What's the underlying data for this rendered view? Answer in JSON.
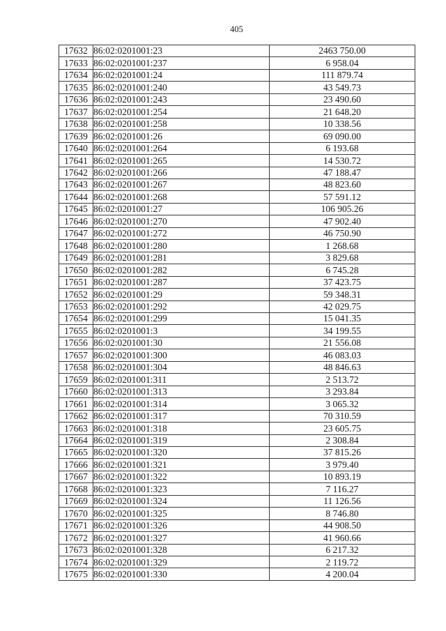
{
  "page": {
    "number": "405"
  },
  "table": {
    "columns": [
      "row-id",
      "cadastral-code",
      "value"
    ],
    "rows": [
      {
        "id": "17632",
        "code": "86:02:0201001:23",
        "value": "2463 750.00"
      },
      {
        "id": "17633",
        "code": "86:02:0201001:237",
        "value": "6 958.04"
      },
      {
        "id": "17634",
        "code": "86:02:0201001:24",
        "value": "111 879.74"
      },
      {
        "id": "17635",
        "code": "86:02:0201001:240",
        "value": "43 549.73"
      },
      {
        "id": "17636",
        "code": "86:02:0201001:243",
        "value": "23 490.60"
      },
      {
        "id": "17637",
        "code": "86:02:0201001:254",
        "value": "21 648.20"
      },
      {
        "id": "17638",
        "code": "86:02:0201001:258",
        "value": "10 338.56"
      },
      {
        "id": "17639",
        "code": "86:02:0201001:26",
        "value": "69 090.00"
      },
      {
        "id": "17640",
        "code": "86:02:0201001:264",
        "value": "6 193.68"
      },
      {
        "id": "17641",
        "code": "86:02:0201001:265",
        "value": "14 530.72"
      },
      {
        "id": "17642",
        "code": "86:02:0201001:266",
        "value": "47 188.47"
      },
      {
        "id": "17643",
        "code": "86:02:0201001:267",
        "value": "48 823.60"
      },
      {
        "id": "17644",
        "code": "86:02:0201001:268",
        "value": "57 591.12"
      },
      {
        "id": "17645",
        "code": "86:02:0201001:27",
        "value": "106 905.26"
      },
      {
        "id": "17646",
        "code": "86:02:0201001:270",
        "value": "47 902.40"
      },
      {
        "id": "17647",
        "code": "86:02:0201001:272",
        "value": "46 750.90"
      },
      {
        "id": "17648",
        "code": "86:02:0201001:280",
        "value": "1 268.68"
      },
      {
        "id": "17649",
        "code": "86:02:0201001:281",
        "value": "3 829.68"
      },
      {
        "id": "17650",
        "code": "86:02:0201001:282",
        "value": "6 745.28"
      },
      {
        "id": "17651",
        "code": "86:02:0201001:287",
        "value": "37 423.75"
      },
      {
        "id": "17652",
        "code": "86:02:0201001:29",
        "value": "59 348.31"
      },
      {
        "id": "17653",
        "code": "86:02:0201001:292",
        "value": "42 029.75"
      },
      {
        "id": "17654",
        "code": "86:02:0201001:299",
        "value": "15 041.35"
      },
      {
        "id": "17655",
        "code": "86:02:0201001:3",
        "value": "34 199.55"
      },
      {
        "id": "17656",
        "code": "86:02:0201001:30",
        "value": "21 556.08"
      },
      {
        "id": "17657",
        "code": "86:02:0201001:300",
        "value": "46 083.03"
      },
      {
        "id": "17658",
        "code": "86:02:0201001:304",
        "value": "48 846.63"
      },
      {
        "id": "17659",
        "code": "86:02:0201001:311",
        "value": "2 513.72"
      },
      {
        "id": "17660",
        "code": "86:02:0201001:313",
        "value": "3 293.84"
      },
      {
        "id": "17661",
        "code": "86:02:0201001:314",
        "value": "3 065.32"
      },
      {
        "id": "17662",
        "code": "86:02:0201001:317",
        "value": "70 310.59"
      },
      {
        "id": "17663",
        "code": "86:02:0201001:318",
        "value": "23 605.75"
      },
      {
        "id": "17664",
        "code": "86:02:0201001:319",
        "value": "2 308.84"
      },
      {
        "id": "17665",
        "code": "86:02:0201001:320",
        "value": "37 815.26"
      },
      {
        "id": "17666",
        "code": "86:02:0201001:321",
        "value": "3 979.40"
      },
      {
        "id": "17667",
        "code": "86:02:0201001:322",
        "value": "10 893.19"
      },
      {
        "id": "17668",
        "code": "86:02:0201001:323",
        "value": "7 116.27"
      },
      {
        "id": "17669",
        "code": "86:02:0201001:324",
        "value": "11 126.56"
      },
      {
        "id": "17670",
        "code": "86:02:0201001:325",
        "value": "8 746.80"
      },
      {
        "id": "17671",
        "code": "86:02:0201001:326",
        "value": "44 908.50"
      },
      {
        "id": "17672",
        "code": "86:02:0201001:327",
        "value": "41 960.66"
      },
      {
        "id": "17673",
        "code": "86:02:0201001:328",
        "value": "6 217.32"
      },
      {
        "id": "17674",
        "code": "86:02:0201001:329",
        "value": "2 119.72"
      },
      {
        "id": "17675",
        "code": "86:02:0201001:330",
        "value": "4 200.04"
      }
    ]
  }
}
